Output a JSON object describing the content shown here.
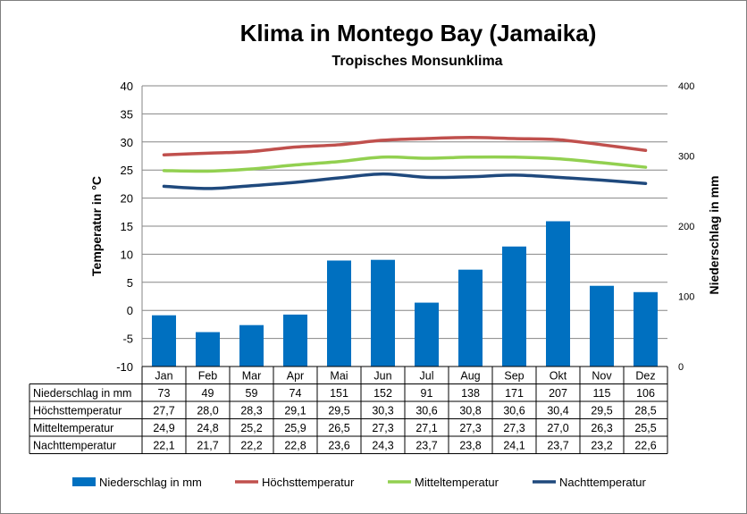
{
  "title": "Klima in Montego Bay (Jamaika)",
  "subtitle": "Tropisches Monsunklima",
  "chart_data": {
    "type": "bar+line",
    "title": "Klima in Montego Bay (Jamaika)",
    "subtitle": "Tropisches Monsunklima",
    "categories": [
      "Jan",
      "Feb",
      "Mar",
      "Apr",
      "Mai",
      "Jun",
      "Jul",
      "Aug",
      "Sep",
      "Okt",
      "Nov",
      "Dez"
    ],
    "y_left": {
      "label": "Temperatur in °C",
      "lim": [
        -10,
        40
      ],
      "ticks": [
        -10,
        -5,
        0,
        5,
        10,
        15,
        20,
        25,
        30,
        35,
        40
      ]
    },
    "y_right": {
      "label": "Niederschlag in mm",
      "lim": [
        0,
        400
      ],
      "ticks": [
        0,
        100,
        200,
        300,
        400
      ]
    },
    "series": [
      {
        "name": "Niederschlag in mm",
        "kind": "bar",
        "axis": "right",
        "color": "#0070c0",
        "values": [
          73,
          49,
          59,
          74,
          151,
          152,
          91,
          138,
          171,
          207,
          115,
          106
        ],
        "labels": [
          "73",
          "49",
          "59",
          "74",
          "151",
          "152",
          "91",
          "138",
          "171",
          "207",
          "115",
          "106"
        ]
      },
      {
        "name": "Höchsttemperatur",
        "kind": "line",
        "axis": "left",
        "color": "#c0504d",
        "values": [
          27.7,
          28.0,
          28.3,
          29.1,
          29.5,
          30.3,
          30.6,
          30.8,
          30.6,
          30.4,
          29.5,
          28.5
        ],
        "labels": [
          "27,7",
          "28,0",
          "28,3",
          "29,1",
          "29,5",
          "30,3",
          "30,6",
          "30,8",
          "30,6",
          "30,4",
          "29,5",
          "28,5"
        ]
      },
      {
        "name": "Mitteltemperatur",
        "kind": "line",
        "axis": "left",
        "color": "#92d050",
        "values": [
          24.9,
          24.8,
          25.2,
          25.9,
          26.5,
          27.3,
          27.1,
          27.3,
          27.3,
          27.0,
          26.3,
          25.5
        ],
        "labels": [
          "24,9",
          "24,8",
          "25,2",
          "25,9",
          "26,5",
          "27,3",
          "27,1",
          "27,3",
          "27,3",
          "27,0",
          "26,3",
          "25,5"
        ]
      },
      {
        "name": "Nachttemperatur",
        "kind": "line",
        "axis": "left",
        "color": "#1f497d",
        "values": [
          22.1,
          21.7,
          22.2,
          22.8,
          23.6,
          24.3,
          23.7,
          23.8,
          24.1,
          23.7,
          23.2,
          22.6
        ],
        "labels": [
          "22,1",
          "21,7",
          "22,2",
          "22,8",
          "23,6",
          "24,3",
          "23,7",
          "23,8",
          "24,1",
          "23,7",
          "23,2",
          "22,6"
        ]
      }
    ],
    "grid": true,
    "legend": "bottom",
    "data_table": true
  }
}
